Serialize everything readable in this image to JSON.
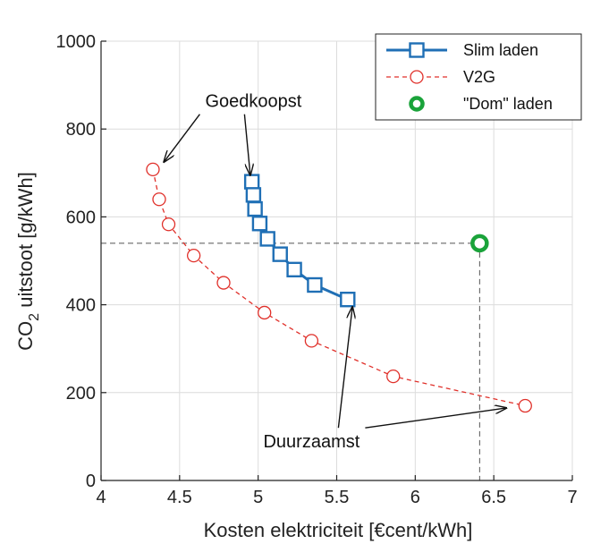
{
  "chart_data": {
    "type": "line",
    "xlabel": "Kosten elektriciteit [€cent/kWh]",
    "ylabel_main": "CO",
    "ylabel_sub": "2",
    "ylabel_rest": " uitstoot [g/kWh]",
    "xlim": [
      4,
      7
    ],
    "ylim": [
      0,
      1000
    ],
    "xticks": [
      4,
      4.5,
      5,
      5.5,
      6,
      6.5,
      7
    ],
    "yticks": [
      0,
      200,
      400,
      600,
      800,
      1000
    ],
    "xtick_labels": [
      "4",
      "4.5",
      "5",
      "5.5",
      "6",
      "6.5",
      "7"
    ],
    "ytick_labels": [
      "0",
      "200",
      "400",
      "600",
      "800",
      "1000"
    ],
    "grid": true,
    "legend_position": "top-right",
    "series": [
      {
        "name": "Slim laden",
        "color": "#1f6fb5",
        "marker": "square",
        "line": "solid",
        "x": [
          4.96,
          4.97,
          4.98,
          5.01,
          5.06,
          5.14,
          5.23,
          5.36,
          5.57
        ],
        "y": [
          680,
          650,
          618,
          585,
          550,
          515,
          480,
          445,
          412
        ]
      },
      {
        "name": "V2G",
        "color": "#e0302a",
        "marker": "circle",
        "line": "dashed",
        "x": [
          4.33,
          4.37,
          4.43,
          4.59,
          4.78,
          5.04,
          5.34,
          5.86,
          6.7
        ],
        "y": [
          708,
          640,
          583,
          512,
          450,
          382,
          318,
          237,
          170
        ]
      },
      {
        "name": "\"Dom\" laden",
        "color": "#1aa33a",
        "marker": "circle-thick",
        "line": "none",
        "x": [
          6.41
        ],
        "y": [
          540
        ]
      }
    ],
    "reference_lines": {
      "x": 6.41,
      "y": 540
    },
    "annotations": [
      {
        "text": "Goedkoopst",
        "label_x": 4.97,
        "label_y": 850,
        "targets": [
          [
            4.4,
            725
          ],
          [
            4.95,
            695
          ]
        ]
      },
      {
        "text": "Duurzaamst",
        "label_x": 5.34,
        "label_y": 75,
        "targets": [
          [
            5.6,
            395
          ],
          [
            6.58,
            165
          ]
        ]
      }
    ]
  }
}
